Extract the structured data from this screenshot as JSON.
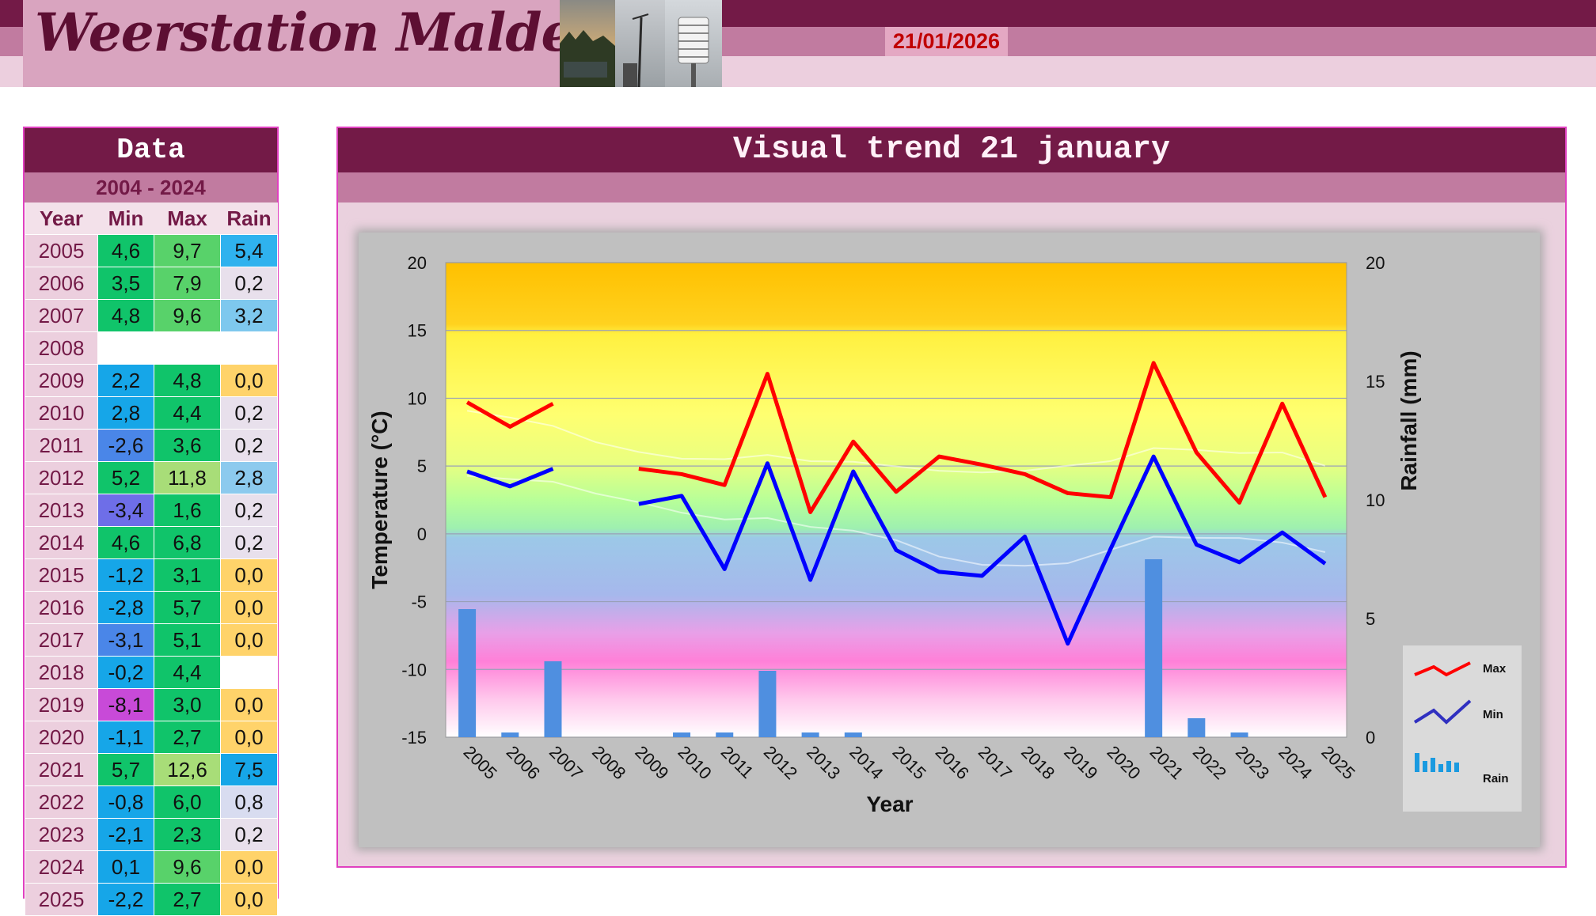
{
  "header": {
    "site_title": "Weerstation Malderen",
    "date": "21/01/2026"
  },
  "colors": {
    "dark": "#731a47",
    "mid": "#c17ba0",
    "light": "#eccfde",
    "max_line": "#ff0000",
    "min_line": "#0000ff",
    "rain_bar": "#4f8fe0"
  },
  "data_panel": {
    "title": "Data",
    "period": "2004 - 2024",
    "headers": {
      "year": "Year",
      "min": "Min",
      "max": "Max",
      "rain": "Rain"
    },
    "rows": [
      {
        "year": "2005",
        "min": "4,6",
        "max": "9,7",
        "rain": "5,4",
        "min_color": "#10c46a",
        "max_color": "#58d26a",
        "rain_color": "#2fb2ee"
      },
      {
        "year": "2006",
        "min": "3,5",
        "max": "7,9",
        "rain": "0,2",
        "min_color": "#10c46a",
        "max_color": "#58d26a",
        "rain_color": "#e8e0ec"
      },
      {
        "year": "2007",
        "min": "4,8",
        "max": "9,6",
        "rain": "3,2",
        "min_color": "#10c46a",
        "max_color": "#58d26a",
        "rain_color": "#7ec8ee"
      },
      {
        "year": "2008",
        "min": "",
        "max": "",
        "rain": "",
        "min_color": "#ffffff",
        "max_color": "#ffffff",
        "rain_color": "#ffffff"
      },
      {
        "year": "2009",
        "min": "2,2",
        "max": "4,8",
        "rain": "0,0",
        "min_color": "#16a6e8",
        "max_color": "#10c46a",
        "rain_color": "#ffd36a"
      },
      {
        "year": "2010",
        "min": "2,8",
        "max": "4,4",
        "rain": "0,2",
        "min_color": "#16a6e8",
        "max_color": "#10c46a",
        "rain_color": "#e8e0ec"
      },
      {
        "year": "2011",
        "min": "-2,6",
        "max": "3,6",
        "rain": "0,2",
        "min_color": "#4a86e8",
        "max_color": "#10c46a",
        "rain_color": "#e8e0ec"
      },
      {
        "year": "2012",
        "min": "5,2",
        "max": "11,8",
        "rain": "2,8",
        "min_color": "#10c46a",
        "max_color": "#a8dd78",
        "rain_color": "#8ccaee"
      },
      {
        "year": "2013",
        "min": "-3,4",
        "max": "1,6",
        "rain": "0,2",
        "min_color": "#6e6ee8",
        "max_color": "#10c46a",
        "rain_color": "#e8e0ec"
      },
      {
        "year": "2014",
        "min": "4,6",
        "max": "6,8",
        "rain": "0,2",
        "min_color": "#10c46a",
        "max_color": "#10c46a",
        "rain_color": "#e8e0ec"
      },
      {
        "year": "2015",
        "min": "-1,2",
        "max": "3,1",
        "rain": "0,0",
        "min_color": "#16a6e8",
        "max_color": "#10c46a",
        "rain_color": "#ffd36a"
      },
      {
        "year": "2016",
        "min": "-2,8",
        "max": "5,7",
        "rain": "0,0",
        "min_color": "#16a6e8",
        "max_color": "#10c46a",
        "rain_color": "#ffd36a"
      },
      {
        "year": "2017",
        "min": "-3,1",
        "max": "5,1",
        "rain": "0,0",
        "min_color": "#4a86e8",
        "max_color": "#10c46a",
        "rain_color": "#ffd36a"
      },
      {
        "year": "2018",
        "min": "-0,2",
        "max": "4,4",
        "rain": "",
        "min_color": "#16a6e8",
        "max_color": "#10c46a",
        "rain_color": "#ffffff"
      },
      {
        "year": "2019",
        "min": "-8,1",
        "max": "3,0",
        "rain": "0,0",
        "min_color": "#c84ad8",
        "max_color": "#10c46a",
        "rain_color": "#ffd36a"
      },
      {
        "year": "2020",
        "min": "-1,1",
        "max": "2,7",
        "rain": "0,0",
        "min_color": "#16a6e8",
        "max_color": "#10c46a",
        "rain_color": "#ffd36a"
      },
      {
        "year": "2021",
        "min": "5,7",
        "max": "12,6",
        "rain": "7,5",
        "min_color": "#10c46a",
        "max_color": "#a8dd78",
        "rain_color": "#16a6e8"
      },
      {
        "year": "2022",
        "min": "-0,8",
        "max": "6,0",
        "rain": "0,8",
        "min_color": "#16a6e8",
        "max_color": "#10c46a",
        "rain_color": "#d8dcf0"
      },
      {
        "year": "2023",
        "min": "-2,1",
        "max": "2,3",
        "rain": "0,2",
        "min_color": "#16a6e8",
        "max_color": "#10c46a",
        "rain_color": "#e8e0ec"
      },
      {
        "year": "2024",
        "min": "0,1",
        "max": "9,6",
        "rain": "0,0",
        "min_color": "#16a6e8",
        "max_color": "#58d26a",
        "rain_color": "#ffd36a"
      },
      {
        "year": "2025",
        "min": "-2,2",
        "max": "2,7",
        "rain": "0,0",
        "min_color": "#16a6e8",
        "max_color": "#10c46a",
        "rain_color": "#ffd36a"
      }
    ]
  },
  "chart_panel": {
    "title": "Visual trend 21 january"
  },
  "chart_data": {
    "type": "line",
    "x": [
      "2005",
      "2006",
      "2007",
      "2008",
      "2009",
      "2010",
      "2011",
      "2012",
      "2013",
      "2014",
      "2015",
      "2016",
      "2017",
      "2018",
      "2019",
      "2020",
      "2021",
      "2022",
      "2023",
      "2024",
      "2025"
    ],
    "series": [
      {
        "name": "Max",
        "axis": "left",
        "color": "#ff0000",
        "values": [
          9.7,
          7.9,
          9.6,
          null,
          4.8,
          4.4,
          3.6,
          11.8,
          1.6,
          6.8,
          3.1,
          5.7,
          5.1,
          4.4,
          3.0,
          2.7,
          12.6,
          6.0,
          2.3,
          9.6,
          2.7
        ]
      },
      {
        "name": "Min",
        "axis": "left",
        "color": "#0000ff",
        "values": [
          4.6,
          3.5,
          4.8,
          null,
          2.2,
          2.8,
          -2.6,
          5.2,
          -3.4,
          4.6,
          -1.2,
          -2.8,
          -3.1,
          -0.2,
          -8.1,
          -1.1,
          5.7,
          -0.8,
          -2.1,
          0.1,
          -2.2
        ]
      },
      {
        "name": "Rain",
        "axis": "right",
        "type": "bar",
        "color": "#4f8fe0",
        "values": [
          5.4,
          0.2,
          3.2,
          null,
          0.0,
          0.2,
          0.2,
          2.8,
          0.2,
          0.2,
          0.0,
          0.0,
          0.0,
          null,
          0.0,
          0.0,
          7.5,
          0.8,
          0.2,
          0.0,
          0.0
        ]
      }
    ],
    "xlabel": "Year",
    "ylabel": "Temperature (°C)",
    "y2label": "Rainfall (mm)",
    "ylim": [
      -15,
      20
    ],
    "y2lim": [
      0,
      20
    ],
    "yticks": [
      "20",
      "15",
      "10",
      "5",
      "0",
      "-5",
      "-10",
      "-15"
    ],
    "y2ticks": [
      "20",
      "15",
      "10",
      "5",
      "0"
    ],
    "grid": true,
    "legend_position": "bottom-right",
    "legend": [
      "Max",
      "Min",
      "Rain"
    ]
  }
}
